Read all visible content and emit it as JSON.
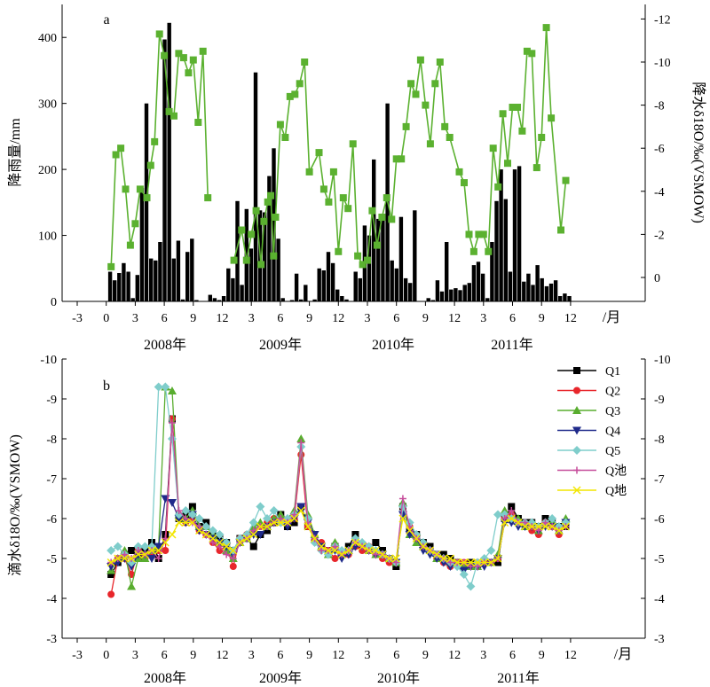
{
  "chart_data": [
    {
      "panel_label": "a",
      "type": "bar+line",
      "xlabel_unit": "/月",
      "x_ticks": [
        "-3",
        "0",
        "3",
        "6",
        "9",
        "12",
        "3",
        "6",
        "9",
        "12",
        "3",
        "6",
        "9",
        "12",
        "3",
        "6",
        "9",
        "12"
      ],
      "years": [
        "2008年",
        "2009年",
        "2010年",
        "2011年"
      ],
      "ylabel_left": "降雨量/mm",
      "ylabel_right": "降水δ18O/‰(VSMOW)",
      "ylim_left": [
        0,
        450
      ],
      "yticks_left": [
        "0",
        "100",
        "200",
        "300",
        "400"
      ],
      "yticks_right": [
        "0",
        "-2",
        "-4",
        "-6",
        "-8",
        "-10",
        "-12"
      ],
      "rain_mm": [
        45,
        32,
        43,
        58,
        45,
        5,
        40,
        172,
        300,
        65,
        62,
        90,
        397,
        422,
        65,
        92,
        3,
        75,
        95,
        2,
        0,
        0,
        10,
        5,
        2,
        8,
        50,
        35,
        152,
        25,
        140,
        80,
        347,
        138,
        135,
        190,
        232,
        95,
        5,
        0,
        2,
        42,
        3,
        25,
        0,
        3,
        50,
        47,
        75,
        58,
        18,
        8,
        3,
        0,
        45,
        35,
        115,
        100,
        215,
        125,
        130,
        300,
        62,
        50,
        128,
        35,
        28,
        138,
        0,
        0,
        5,
        2,
        32,
        15,
        90,
        18,
        20,
        17,
        25,
        28,
        55,
        60,
        42,
        5,
        90,
        152,
        200,
        155,
        45,
        200,
        205,
        30,
        42,
        25,
        55,
        35,
        23,
        27,
        32,
        8,
        12,
        8
      ],
      "d18o_series": [
        {
          "x": 0.5,
          "y": -0.5
        },
        {
          "x": 1.0,
          "y": -5.7
        },
        {
          "x": 1.5,
          "y": -6.0
        },
        {
          "x": 2.0,
          "y": -4.1
        },
        {
          "x": 2.5,
          "y": -1.5
        },
        {
          "x": 3.0,
          "y": -2.5
        },
        {
          "x": 3.5,
          "y": -4.1
        },
        {
          "x": 4.2,
          "y": -3.7
        },
        {
          "x": 4.6,
          "y": -5.2
        },
        {
          "x": 5.0,
          "y": -6.3
        },
        {
          "x": 5.5,
          "y": -11.3
        },
        {
          "x": 6.0,
          "y": -10.3
        },
        {
          "x": 6.5,
          "y": -7.7
        },
        {
          "x": 7.0,
          "y": -7.5
        },
        {
          "x": 7.5,
          "y": -10.4
        },
        {
          "x": 8.0,
          "y": -10.2
        },
        {
          "x": 8.5,
          "y": -9.5
        },
        {
          "x": 9.0,
          "y": -10.1
        },
        {
          "x": 9.5,
          "y": -7.2
        },
        {
          "x": 10.0,
          "y": -10.5
        },
        {
          "x": 10.5,
          "y": -3.7
        },
        {
          "x": 13.2,
          "y": -0.8
        },
        {
          "x": 14.0,
          "y": -2.2
        },
        {
          "x": 14.5,
          "y": -0.8
        },
        {
          "x": 15.0,
          "y": -2.0
        },
        {
          "x": 15.5,
          "y": -3.1
        },
        {
          "x": 16.0,
          "y": -0.6
        },
        {
          "x": 16.3,
          "y": -2.6
        },
        {
          "x": 16.7,
          "y": -3.5
        },
        {
          "x": 17.0,
          "y": -3.8
        },
        {
          "x": 17.3,
          "y": -1.0
        },
        {
          "x": 17.5,
          "y": -2.8
        },
        {
          "x": 18.0,
          "y": -7.1
        },
        {
          "x": 18.5,
          "y": -6.5
        },
        {
          "x": 19.0,
          "y": -8.4
        },
        {
          "x": 19.5,
          "y": -8.5
        },
        {
          "x": 20.0,
          "y": -9.0
        },
        {
          "x": 20.5,
          "y": -10.0
        },
        {
          "x": 21.0,
          "y": -4.9
        },
        {
          "x": 22.0,
          "y": -5.8
        },
        {
          "x": 22.5,
          "y": -4.1
        },
        {
          "x": 23.0,
          "y": -3.5
        },
        {
          "x": 23.5,
          "y": -4.9
        },
        {
          "x": 24.0,
          "y": -1.2
        },
        {
          "x": 24.5,
          "y": -3.7
        },
        {
          "x": 25.0,
          "y": -3.2
        },
        {
          "x": 25.5,
          "y": -6.2
        },
        {
          "x": 26.0,
          "y": -1.0
        },
        {
          "x": 26.5,
          "y": -0.6
        },
        {
          "x": 27.0,
          "y": -0.8
        },
        {
          "x": 27.5,
          "y": -3.1
        },
        {
          "x": 28.0,
          "y": -1.5
        },
        {
          "x": 28.5,
          "y": -2.8
        },
        {
          "x": 29.0,
          "y": -3.7
        },
        {
          "x": 29.5,
          "y": -2.7
        },
        {
          "x": 30.0,
          "y": -5.5
        },
        {
          "x": 30.5,
          "y": -5.5
        },
        {
          "x": 31.0,
          "y": -7.0
        },
        {
          "x": 31.5,
          "y": -9.0
        },
        {
          "x": 32.0,
          "y": -8.5
        },
        {
          "x": 32.5,
          "y": -10.1
        },
        {
          "x": 33.0,
          "y": -8.0
        },
        {
          "x": 33.5,
          "y": -6.2
        },
        {
          "x": 34.0,
          "y": -9.0
        },
        {
          "x": 34.5,
          "y": -10.0
        },
        {
          "x": 35.0,
          "y": -7.0
        },
        {
          "x": 35.5,
          "y": -6.5
        },
        {
          "x": 36.5,
          "y": -4.9
        },
        {
          "x": 37.0,
          "y": -4.4
        },
        {
          "x": 37.5,
          "y": -2.0
        },
        {
          "x": 38.0,
          "y": -1.2
        },
        {
          "x": 38.5,
          "y": -2.0
        },
        {
          "x": 39.0,
          "y": -2.0
        },
        {
          "x": 39.5,
          "y": -1.2
        },
        {
          "x": 40.0,
          "y": -6.0
        },
        {
          "x": 40.5,
          "y": -4.2
        },
        {
          "x": 41.0,
          "y": -7.6
        },
        {
          "x": 41.5,
          "y": -5.3
        },
        {
          "x": 42.0,
          "y": -7.9
        },
        {
          "x": 42.5,
          "y": -7.9
        },
        {
          "x": 43.0,
          "y": -6.8
        },
        {
          "x": 43.5,
          "y": -10.5
        },
        {
          "x": 44.0,
          "y": -10.4
        },
        {
          "x": 44.5,
          "y": -5.1
        },
        {
          "x": 45.0,
          "y": -6.5
        },
        {
          "x": 45.5,
          "y": -11.6
        },
        {
          "x": 46.0,
          "y": -7.4
        },
        {
          "x": 47.0,
          "y": -2.2
        },
        {
          "x": 47.5,
          "y": -4.5
        }
      ]
    },
    {
      "panel_label": "b",
      "type": "line",
      "xlabel_unit": "/月",
      "x_ticks": [
        "-3",
        "0",
        "3",
        "6",
        "9",
        "12",
        "3",
        "6",
        "9",
        "12",
        "3",
        "6",
        "9",
        "12",
        "3",
        "6",
        "9",
        "12"
      ],
      "years": [
        "2008年",
        "2009年",
        "2010年",
        "2011年"
      ],
      "ylabel_left": "滴水δ18O/‰(VSMOW)",
      "ylim": [
        -3,
        -10
      ],
      "yticks": [
        "-3",
        "-4",
        "-5",
        "-6",
        "-7",
        "-8",
        "-9",
        "-10"
      ],
      "legend": [
        "Q1",
        "Q2",
        "Q3",
        "Q4",
        "Q5",
        "Q池",
        "Q地"
      ],
      "colors": [
        "#000000",
        "#e8262b",
        "#59ad2f",
        "#1f2a8a",
        "#7fcdcb",
        "#c64d9b",
        "#f2e600"
      ],
      "series": [
        {
          "name": "Q1",
          "values": [
            -4.6,
            -4.9,
            -5.1,
            -5.2,
            -5.0,
            -5.2,
            -5.4,
            -5.0,
            -5.6,
            -8.5,
            -6.0,
            -6.1,
            -6.3,
            -5.8,
            -5.9,
            -5.6,
            -5.5,
            -5.4,
            -5.2,
            -5.5,
            -5.5,
            -5.3,
            -5.6,
            -5.7,
            -5.9,
            -6.1,
            -5.8,
            -5.9,
            -6.3,
            -5.8,
            -5.5,
            -5.3,
            -5.2,
            -5.3,
            -5.1,
            -5.3,
            -5.6,
            -5.3,
            -5.2,
            -5.4,
            -5.2,
            -5.0,
            -4.8,
            -6.3,
            -5.7,
            -5.6,
            -5.4,
            -5.3,
            -5.1,
            -5.1,
            -5.0,
            -4.9,
            -4.8,
            -4.9,
            -4.8,
            -4.9,
            -4.9,
            -4.9,
            -6.0,
            -6.3,
            -6.0,
            -5.9,
            -5.9,
            -5.8,
            -6.0,
            -5.9,
            -5.8,
            -5.8
          ]
        },
        {
          "name": "Q2",
          "values": [
            -4.1,
            -5.0,
            -5.0,
            -4.6,
            -5.2,
            -5.0,
            -5.1,
            -5.2,
            -5.2,
            -8.5,
            -6.1,
            -5.9,
            -6.0,
            -5.7,
            -5.6,
            -5.4,
            -5.2,
            -5.3,
            -4.8,
            -5.5,
            -5.6,
            -5.7,
            -5.8,
            -5.9,
            -6.0,
            -5.9,
            -5.9,
            -6.0,
            -7.6,
            -5.8,
            -5.5,
            -5.4,
            -5.2,
            -5.0,
            -5.1,
            -5.1,
            -5.3,
            -5.2,
            -5.3,
            -5.1,
            -5.0,
            -4.9,
            -4.9,
            -6.3,
            -5.8,
            -5.5,
            -5.3,
            -5.2,
            -5.0,
            -4.9,
            -4.8,
            -4.9,
            -4.9,
            -4.8,
            -4.9,
            -4.9,
            -4.9,
            -5.0,
            -6.0,
            -6.1,
            -5.9,
            -5.8,
            -5.7,
            -5.6,
            -5.9,
            -5.8,
            -5.6,
            -5.9
          ]
        },
        {
          "name": "Q3",
          "values": [
            -4.7,
            -5.0,
            -5.2,
            -4.3,
            -5.0,
            -5.0,
            -5.2,
            -5.3,
            -9.3,
            -9.2,
            -6.1,
            -6.0,
            -6.2,
            -5.8,
            -5.8,
            -5.6,
            -5.4,
            -5.2,
            -5.0,
            -5.4,
            -5.5,
            -5.8,
            -5.9,
            -5.8,
            -6.0,
            -6.1,
            -6.0,
            -6.2,
            -8.0,
            -6.1,
            -5.6,
            -5.3,
            -5.1,
            -5.4,
            -5.1,
            -5.2,
            -5.4,
            -5.4,
            -5.2,
            -5.1,
            -5.1,
            -5.0,
            -4.9,
            -6.4,
            -5.6,
            -5.4,
            -5.3,
            -5.2,
            -5.0,
            -5.0,
            -4.9,
            -4.9,
            -4.8,
            -4.8,
            -4.8,
            -4.9,
            -4.9,
            -5.1,
            -6.2,
            -6.0,
            -6.0,
            -5.8,
            -5.9,
            -5.7,
            -5.9,
            -5.9,
            -5.7,
            -6.0
          ]
        },
        {
          "name": "Q4",
          "values": [
            -4.8,
            -4.9,
            -5.0,
            -4.8,
            -5.1,
            -5.1,
            -5.0,
            -5.3,
            -6.5,
            -6.4,
            -6.0,
            -5.9,
            -6.1,
            -5.7,
            -5.6,
            -5.5,
            -5.4,
            -5.3,
            -5.1,
            -5.4,
            -5.5,
            -5.6,
            -5.6,
            -5.8,
            -5.9,
            -5.9,
            -5.8,
            -6.0,
            -6.3,
            -5.9,
            -5.6,
            -5.3,
            -5.1,
            -5.2,
            -5.0,
            -5.1,
            -5.3,
            -5.3,
            -5.2,
            -5.1,
            -5.1,
            -5.0,
            -4.9,
            -6.1,
            -5.6,
            -5.5,
            -5.2,
            -5.1,
            -5.0,
            -4.9,
            -4.8,
            -4.8,
            -4.7,
            -4.8,
            -4.8,
            -4.8,
            -4.9,
            -5.0,
            -5.9,
            -5.9,
            -5.8,
            -5.8,
            -5.8,
            -5.7,
            -5.8,
            -5.8,
            -5.7,
            -5.9
          ]
        },
        {
          "name": "Q5",
          "values": [
            -5.2,
            -5.3,
            -5.1,
            -4.9,
            -5.3,
            -5.3,
            -5.3,
            -9.3,
            -9.3,
            -8.0,
            -6.1,
            -6.2,
            -6.1,
            -6.0,
            -5.8,
            -5.7,
            -5.6,
            -5.4,
            -5.2,
            -5.5,
            -5.6,
            -5.9,
            -6.3,
            -6.0,
            -6.2,
            -5.9,
            -6.0,
            -6.1,
            -7.8,
            -6.0,
            -5.4,
            -5.2,
            -5.1,
            -5.3,
            -5.2,
            -5.2,
            -5.5,
            -5.4,
            -5.3,
            -5.2,
            -5.1,
            -5.0,
            -4.9,
            -6.3,
            -5.9,
            -5.6,
            -5.4,
            -5.2,
            -5.1,
            -5.0,
            -4.9,
            -4.8,
            -4.6,
            -4.3,
            -4.9,
            -5.0,
            -5.2,
            -6.1,
            -6.1,
            -6.0,
            -5.9,
            -5.9,
            -5.9,
            -5.8,
            -5.9,
            -6.0,
            -5.8,
            -5.9
          ]
        },
        {
          "name": "Q池",
          "values": [
            -4.9,
            -5.0,
            -5.1,
            -5.0,
            -5.2,
            -5.1,
            -5.2,
            -5.0,
            -5.5,
            -8.4,
            -6.2,
            -6.0,
            -5.9,
            -5.8,
            -5.6,
            -5.4,
            -5.3,
            -5.1,
            -5.0,
            -5.4,
            -5.5,
            -5.7,
            -5.8,
            -5.8,
            -5.9,
            -6.0,
            -5.9,
            -6.1,
            -7.9,
            -5.9,
            -5.5,
            -5.2,
            -5.2,
            -5.3,
            -5.1,
            -5.2,
            -5.4,
            -5.3,
            -5.2,
            -5.1,
            -5.1,
            -5.0,
            -4.9,
            -6.5,
            -5.8,
            -5.5,
            -5.3,
            -5.2,
            -5.1,
            -5.0,
            -4.9,
            -4.9,
            -4.9,
            -4.8,
            -4.8,
            -4.9,
            -4.9,
            -5.0,
            -6.0,
            -6.2,
            -5.9,
            -5.9,
            -5.8,
            -5.7,
            -5.9,
            -5.8,
            -5.7,
            -5.8
          ]
        },
        {
          "name": "Q地",
          "values": [
            -4.9,
            -5.0,
            -5.0,
            -5.0,
            -5.1,
            -5.1,
            -5.2,
            -5.2,
            -5.4,
            -5.6,
            -5.9,
            -5.9,
            -5.9,
            -5.7,
            -5.6,
            -5.5,
            -5.4,
            -5.3,
            -5.2,
            -5.4,
            -5.5,
            -5.6,
            -5.8,
            -5.8,
            -5.9,
            -5.9,
            -5.9,
            -6.0,
            -6.2,
            -5.8,
            -5.5,
            -5.3,
            -5.2,
            -5.2,
            -5.1,
            -5.2,
            -5.4,
            -5.3,
            -5.2,
            -5.2,
            -5.1,
            -5.0,
            -5.0,
            -6.0,
            -5.7,
            -5.5,
            -5.3,
            -5.2,
            -5.1,
            -5.0,
            -5.0,
            -4.9,
            -4.9,
            -4.9,
            -4.9,
            -4.9,
            -4.9,
            -5.0,
            -5.9,
            -6.0,
            -5.9,
            -5.8,
            -5.8,
            -5.8,
            -5.8,
            -5.8,
            -5.7,
            -5.8
          ]
        }
      ]
    }
  ]
}
